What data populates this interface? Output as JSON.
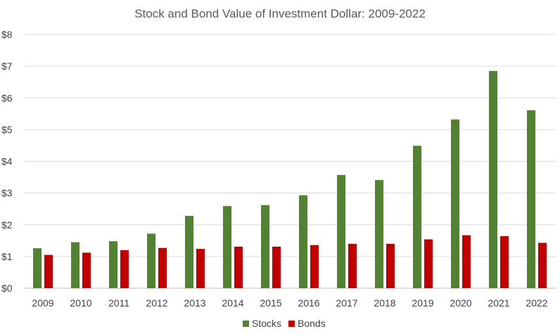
{
  "chart_data": {
    "type": "bar",
    "title": "Stock and Bond Value of Investment Dollar: 2009-2022",
    "xlabel": "",
    "ylabel": "",
    "categories": [
      "2009",
      "2010",
      "2011",
      "2012",
      "2013",
      "2014",
      "2015",
      "2016",
      "2017",
      "2018",
      "2019",
      "2020",
      "2021",
      "2022"
    ],
    "series": [
      {
        "name": "Stocks",
        "color": "#548235",
        "values": [
          1.26,
          1.45,
          1.48,
          1.72,
          2.28,
          2.59,
          2.62,
          2.93,
          3.57,
          3.41,
          4.49,
          5.32,
          6.85,
          5.61
        ]
      },
      {
        "name": "Bonds",
        "color": "#c00000",
        "values": [
          1.05,
          1.12,
          1.2,
          1.27,
          1.24,
          1.31,
          1.31,
          1.36,
          1.4,
          1.4,
          1.54,
          1.67,
          1.64,
          1.43
        ]
      }
    ],
    "ylim": [
      0,
      8
    ],
    "yticks": [
      "$0",
      "$1",
      "$2",
      "$3",
      "$4",
      "$5",
      "$6",
      "$7",
      "$8"
    ],
    "grid": true,
    "legend": "bottom"
  }
}
